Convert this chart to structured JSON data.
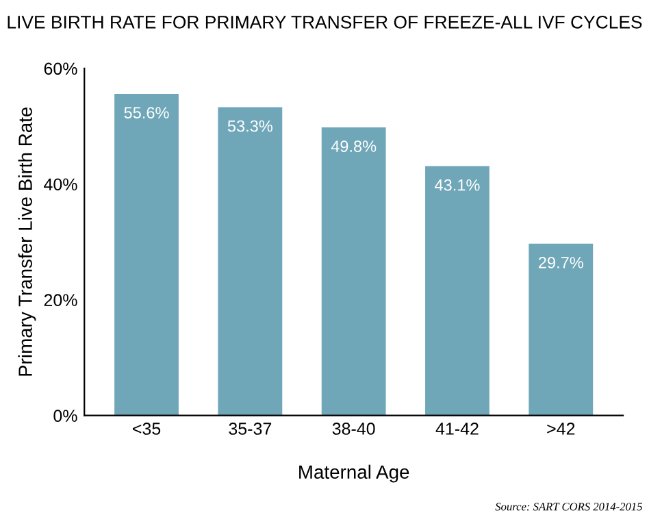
{
  "chart_data": {
    "type": "bar",
    "title": "LIVE BIRTH RATE FOR PRIMARY TRANSFER OF FREEZE-ALL IVF CYCLES",
    "xlabel": "Maternal Age",
    "ylabel": "Primary Transfer Live Birth Rate",
    "categories": [
      "<35",
      "35-37",
      "38-40",
      "41-42",
      ">42"
    ],
    "values": [
      55.6,
      53.3,
      49.8,
      43.1,
      29.7
    ],
    "value_labels": [
      "55.6%",
      "53.3%",
      "49.8%",
      "43.1%",
      "29.7%"
    ],
    "color": "#6fa7b9",
    "ylim": [
      0,
      60
    ],
    "yticks": [
      {
        "value": 0,
        "label": "0%"
      },
      {
        "value": 20,
        "label": "20%"
      },
      {
        "value": 40,
        "label": "40%"
      },
      {
        "value": 60,
        "label": "60%"
      }
    ],
    "grid": false,
    "annotations": [
      "Source: SART CORS 2014-2015"
    ]
  }
}
